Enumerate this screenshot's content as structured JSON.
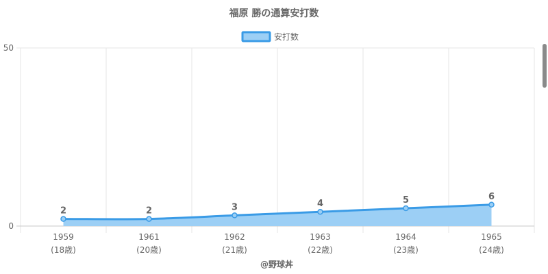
{
  "chart_data": {
    "type": "area",
    "title": "福原 勝の通算安打数",
    "legend": {
      "position": "top",
      "entries": [
        "安打数"
      ]
    },
    "categories": [
      "1959",
      "1961",
      "1962",
      "1963",
      "1964",
      "1965"
    ],
    "category_sublabels": [
      "(18歳)",
      "(20歳)",
      "(21歳)",
      "(22歳)",
      "(23歳)",
      "(24歳)"
    ],
    "series": [
      {
        "name": "安打数",
        "values": [
          2,
          2,
          3,
          4,
          5,
          6
        ]
      }
    ],
    "ylim": [
      0,
      50
    ],
    "yticks": [
      0,
      50
    ],
    "grid": true,
    "data_labels": true,
    "colors": {
      "line": "#3a9be6",
      "fill": "#9ccff5",
      "grid": "#e6e6e6",
      "text": "#666666"
    }
  },
  "credit": "@野球丼"
}
